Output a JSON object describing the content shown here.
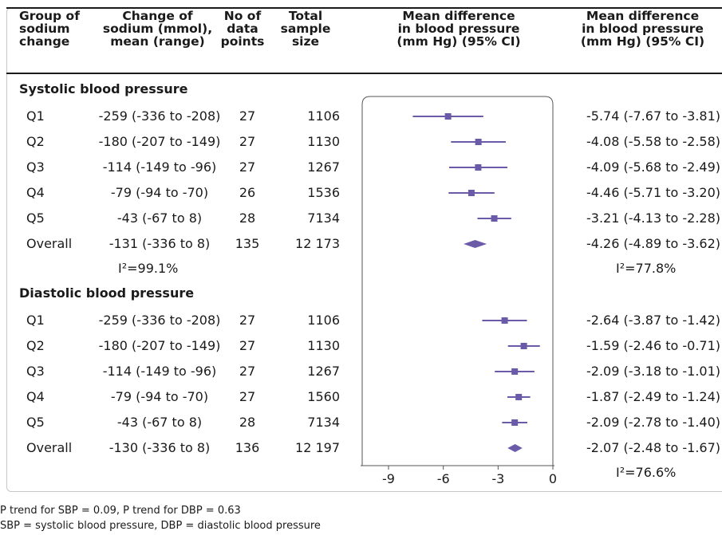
{
  "headers": {
    "group": "Group of\nsodium\nchange",
    "change": "Change of\nsodium (mmol),\nmean (range)",
    "points": "No of\ndata\npoints",
    "sample": "Total\nsample\nsize",
    "plot": "Mean difference\nin blood pressure\n(mm Hg) (95% CI)",
    "estimate": "Mean difference\nin blood pressure\n(mm Hg) (95% CI)"
  },
  "sections": [
    {
      "title": "Systolic blood pressure",
      "heterogeneity_left": "I²=99.1%",
      "heterogeneity_right": "I²=77.8%",
      "rows": [
        {
          "group": "Q1",
          "change": "-259 (-336 to -208)",
          "points": "27",
          "sample": "1106",
          "estimate": "-5.74 (-7.67 to -3.81)"
        },
        {
          "group": "Q2",
          "change": "-180 (-207 to -149)",
          "points": "27",
          "sample": "1130",
          "estimate": "-4.08 (-5.58 to -2.58)"
        },
        {
          "group": "Q3",
          "change": "-114 (-149 to -96)",
          "points": "27",
          "sample": "1267",
          "estimate": "-4.09 (-5.68 to -2.49)"
        },
        {
          "group": "Q4",
          "change": "-79 (-94 to -70)",
          "points": "26",
          "sample": "1536",
          "estimate": "-4.46 (-5.71 to -3.20)"
        },
        {
          "group": "Q5",
          "change": "-43 (-67 to 8)",
          "points": "28",
          "sample": "7134",
          "estimate": "-3.21 (-4.13 to -2.28)"
        },
        {
          "group": "Overall",
          "change": "-131 (-336 to 8)",
          "points": "135",
          "sample": "12 173",
          "estimate": "-4.26 (-4.89 to -3.62)"
        }
      ]
    },
    {
      "title": "Diastolic blood pressure",
      "heterogeneity_left": "",
      "heterogeneity_right": "I²=76.6%",
      "rows": [
        {
          "group": "Q1",
          "change": "-259 (-336 to -208)",
          "points": "27",
          "sample": "1106",
          "estimate": "-2.64 (-3.87 to -1.42)"
        },
        {
          "group": "Q2",
          "change": "-180 (-207 to -149)",
          "points": "27",
          "sample": "1130",
          "estimate": "-1.59 (-2.46 to -0.71)"
        },
        {
          "group": "Q3",
          "change": "-114 (-149 to -96)",
          "points": "27",
          "sample": "1267",
          "estimate": "-2.09 (-3.18 to -1.01)"
        },
        {
          "group": "Q4",
          "change": "-79 (-94 to -70)",
          "points": "27",
          "sample": "1560",
          "estimate": "-1.87 (-2.49 to -1.24)"
        },
        {
          "group": "Q5",
          "change": "-43 (-67 to 8)",
          "points": "28",
          "sample": "7134",
          "estimate": "-2.09 (-2.78 to -1.40)"
        },
        {
          "group": "Overall",
          "change": "-130 (-336 to 8)",
          "points": "136",
          "sample": "12 197",
          "estimate": "-2.07 (-2.48 to -1.67)"
        }
      ]
    }
  ],
  "footnotes": [
    "P trend for SBP = 0.09, P trend for DBP = 0.63",
    "SBP = systolic blood pressure, DBP = diastolic blood pressure"
  ],
  "colors": {
    "marker": "#6a5aa8",
    "axis": "#555555",
    "text": "#1a1a1a",
    "border": "#c7c7c7"
  },
  "chart_data": {
    "type": "forest",
    "title": "",
    "xlabel": "",
    "xlim": [
      -9,
      0
    ],
    "xticks": [
      -9,
      -6,
      -3,
      0
    ],
    "xtick_labels": [
      "-9",
      "-6",
      "-3",
      "0"
    ],
    "series": [
      {
        "name": "Systolic blood pressure",
        "categories": [
          "Q1",
          "Q2",
          "Q3",
          "Q4",
          "Q5",
          "Overall"
        ],
        "mean": [
          -5.74,
          -4.08,
          -4.09,
          -4.46,
          -3.21,
          -4.26
        ],
        "lower": [
          -7.67,
          -5.58,
          -5.68,
          -5.71,
          -4.13,
          -4.89
        ],
        "upper": [
          -3.81,
          -2.58,
          -2.49,
          -3.2,
          -2.28,
          -3.62
        ],
        "pooled": [
          false,
          false,
          false,
          false,
          false,
          true
        ]
      },
      {
        "name": "Diastolic blood pressure",
        "categories": [
          "Q1",
          "Q2",
          "Q3",
          "Q4",
          "Q5",
          "Overall"
        ],
        "mean": [
          -2.64,
          -1.59,
          -2.09,
          -1.87,
          -2.09,
          -2.07
        ],
        "lower": [
          -3.87,
          -2.46,
          -3.18,
          -2.49,
          -2.78,
          -2.48
        ],
        "upper": [
          -1.42,
          -0.71,
          -1.01,
          -1.24,
          -1.4,
          -1.67
        ],
        "pooled": [
          false,
          false,
          false,
          false,
          false,
          true
        ]
      }
    ]
  }
}
